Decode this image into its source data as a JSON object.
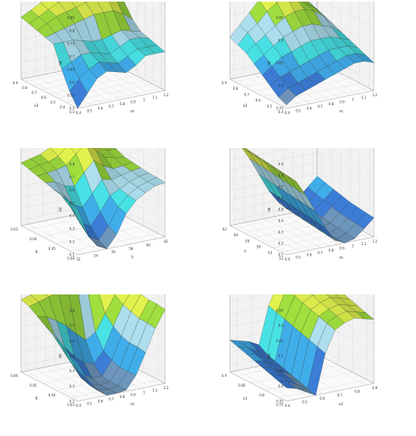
{
  "figure": {
    "colormap": [
      "#6a8fb5",
      "#3a78d0",
      "#3ea6e2",
      "#45d8dc",
      "#a6d6e6",
      "#9ad63c",
      "#d8e84a",
      "#f0f070"
    ],
    "mesh_color": "#223322",
    "pane_color": "#f2f2f2",
    "grid_color": "#c8c8c8"
  },
  "chart_data": [
    {
      "type": "surface",
      "xlabel": "rπ",
      "ylabel": "ε2",
      "zlabel": "π1",
      "xticks": [
        "0.4",
        "0.5",
        "0.6",
        "0.7",
        "0.8",
        "0.9",
        "1",
        "1.1",
        "1.2"
      ],
      "yticks": [
        "0.9",
        "0.8",
        "0.7",
        "0.6",
        "0.5",
        "0.4",
        "0.3"
      ],
      "zticks": [
        "0.5",
        "0.55",
        "0.6",
        "0.65",
        "0.7",
        "0.75",
        "0.8",
        "0.85"
      ],
      "zlim": [
        0.5,
        0.85
      ],
      "z": [
        [
          0.74,
          0.76,
          0.78,
          0.8,
          0.81,
          0.82,
          0.83,
          0.84,
          0.82,
          0.79
        ],
        [
          0.73,
          0.75,
          0.77,
          0.79,
          0.8,
          0.81,
          0.82,
          0.83,
          0.81,
          0.78
        ],
        [
          0.72,
          0.74,
          0.76,
          0.77,
          0.78,
          0.79,
          0.8,
          0.81,
          0.79,
          0.76
        ],
        [
          0.71,
          0.72,
          0.73,
          0.74,
          0.75,
          0.76,
          0.76,
          0.76,
          0.74,
          0.71
        ],
        [
          0.7,
          0.7,
          0.7,
          0.69,
          0.68,
          0.68,
          0.69,
          0.7,
          0.69,
          0.68
        ],
        [
          0.62,
          0.64,
          0.66,
          0.66,
          0.65,
          0.64,
          0.66,
          0.68,
          0.68,
          0.67
        ],
        [
          0.55,
          0.59,
          0.62,
          0.64,
          0.63,
          0.62,
          0.64,
          0.66,
          0.66,
          0.66
        ],
        [
          0.5,
          0.55,
          0.6,
          0.62,
          0.61,
          0.6,
          0.62,
          0.65,
          0.65,
          0.65
        ]
      ]
    },
    {
      "type": "surface",
      "xlabel": "rπ",
      "ylabel": "ε2",
      "zlabel": "π2",
      "xticks": [
        "0.4",
        "0.5",
        "0.6",
        "0.7",
        "0.8",
        "0.9",
        "1",
        "1.1",
        "1.2"
      ],
      "yticks": [
        "0.9",
        "0.8",
        "0.7",
        "0.6",
        "0.5",
        "0.4"
      ],
      "zticks": [
        "0.75",
        "0.8",
        "0.85",
        "0.9",
        "0.95"
      ],
      "zlim": [
        0.72,
        0.98
      ],
      "z": [
        [
          0.84,
          0.87,
          0.9,
          0.93,
          0.96,
          0.97,
          0.96,
          0.93,
          0.9,
          0.87
        ],
        [
          0.83,
          0.86,
          0.88,
          0.91,
          0.93,
          0.94,
          0.93,
          0.91,
          0.89,
          0.86
        ],
        [
          0.82,
          0.84,
          0.86,
          0.88,
          0.9,
          0.91,
          0.91,
          0.9,
          0.88,
          0.85
        ],
        [
          0.8,
          0.82,
          0.84,
          0.86,
          0.87,
          0.88,
          0.88,
          0.87,
          0.86,
          0.84
        ],
        [
          0.78,
          0.8,
          0.82,
          0.83,
          0.84,
          0.85,
          0.85,
          0.85,
          0.84,
          0.83
        ],
        [
          0.76,
          0.78,
          0.79,
          0.8,
          0.81,
          0.82,
          0.83,
          0.83,
          0.83,
          0.82
        ],
        [
          0.74,
          0.76,
          0.77,
          0.78,
          0.79,
          0.8,
          0.81,
          0.82,
          0.82,
          0.81
        ],
        [
          0.73,
          0.75,
          0.76,
          0.77,
          0.78,
          0.79,
          0.8,
          0.81,
          0.81,
          0.8
        ]
      ]
    },
    {
      "type": "surface",
      "xlabel": "T",
      "ylabel": "δ",
      "zlabel": "π3",
      "xticks": [
        "52",
        "54",
        "56",
        "58",
        "60",
        "62"
      ],
      "yticks": [
        "0.03",
        "0.04",
        "0.05",
        "0.06"
      ],
      "zticks": [
        "0.1",
        "0.2",
        "0.3",
        "0.4",
        "0.5",
        "0.6",
        "0.7",
        "0.8"
      ],
      "zlim": [
        0.1,
        0.85
      ],
      "z": [
        [
          0.62,
          0.64,
          0.66,
          0.7,
          0.78,
          0.82,
          0.78,
          0.7,
          0.66,
          0.64
        ],
        [
          0.6,
          0.62,
          0.63,
          0.66,
          0.74,
          0.8,
          0.74,
          0.66,
          0.63,
          0.62
        ],
        [
          0.58,
          0.59,
          0.6,
          0.62,
          0.7,
          0.76,
          0.7,
          0.62,
          0.6,
          0.59
        ],
        [
          0.56,
          0.55,
          0.5,
          0.48,
          0.58,
          0.66,
          0.6,
          0.56,
          0.57,
          0.58
        ],
        [
          0.54,
          0.48,
          0.38,
          0.34,
          0.44,
          0.54,
          0.52,
          0.54,
          0.56,
          0.57
        ],
        [
          0.52,
          0.4,
          0.26,
          0.22,
          0.32,
          0.44,
          0.48,
          0.52,
          0.55,
          0.56
        ],
        [
          0.5,
          0.32,
          0.18,
          0.14,
          0.24,
          0.38,
          0.46,
          0.51,
          0.54,
          0.56
        ],
        [
          0.48,
          0.26,
          0.14,
          0.1,
          0.2,
          0.36,
          0.45,
          0.5,
          0.54,
          0.55
        ]
      ]
    },
    {
      "type": "surface",
      "xlabel": "rπ",
      "ylabel": "T",
      "zlabel": "π4",
      "xticks": [
        "0.4",
        "0.5",
        "0.6",
        "0.7",
        "0.8",
        "0.9",
        "1",
        "1.1",
        "1.2"
      ],
      "yticks": [
        "62",
        "60",
        "58",
        "56",
        "54",
        "52"
      ],
      "zticks": [
        "0.1",
        "0.2",
        "0.3",
        "0.4",
        "0.5",
        "0.6",
        "0.7",
        "0.8",
        "0.9"
      ],
      "zlim": [
        0.1,
        0.9
      ],
      "z": [
        [
          0.86,
          0.8,
          0.66,
          0.5,
          0.34,
          0.22,
          0.18,
          0.22,
          0.3,
          0.38
        ],
        [
          0.85,
          0.79,
          0.65,
          0.49,
          0.33,
          0.2,
          0.16,
          0.2,
          0.28,
          0.36
        ],
        [
          0.84,
          0.78,
          0.64,
          0.48,
          0.32,
          0.19,
          0.14,
          0.18,
          0.26,
          0.34
        ],
        [
          0.83,
          0.77,
          0.63,
          0.47,
          0.31,
          0.18,
          0.13,
          0.16,
          0.24,
          0.32
        ],
        [
          0.82,
          0.76,
          0.62,
          0.46,
          0.3,
          0.17,
          0.12,
          0.15,
          0.22,
          0.3
        ],
        [
          0.81,
          0.75,
          0.61,
          0.45,
          0.29,
          0.16,
          0.11,
          0.14,
          0.21,
          0.29
        ],
        [
          0.8,
          0.74,
          0.6,
          0.44,
          0.28,
          0.15,
          0.1,
          0.13,
          0.2,
          0.28
        ],
        [
          0.79,
          0.73,
          0.59,
          0.43,
          0.27,
          0.14,
          0.1,
          0.12,
          0.19,
          0.27
        ]
      ]
    },
    {
      "type": "surface",
      "xlabel": "rπ",
      "ylabel": "δ",
      "zlabel": "π5",
      "xticks": [
        "0.4",
        "0.5",
        "0.6",
        "0.7",
        "0.8",
        "0.9",
        "1",
        "1.1",
        "1.2"
      ],
      "yticks": [
        "0.06",
        "0.05",
        "0.04",
        "0.03"
      ],
      "zticks": [
        "0.2",
        "0.3",
        "0.4",
        "0.5",
        "0.6",
        "0.7",
        "0.8"
      ],
      "zlim": [
        0.2,
        0.85
      ],
      "z": [
        [
          0.72,
          0.74,
          0.76,
          0.78,
          0.8,
          0.8,
          0.79,
          0.78,
          0.79,
          0.81
        ],
        [
          0.7,
          0.72,
          0.74,
          0.76,
          0.77,
          0.76,
          0.74,
          0.74,
          0.76,
          0.79
        ],
        [
          0.66,
          0.64,
          0.6,
          0.55,
          0.48,
          0.42,
          0.46,
          0.58,
          0.7,
          0.78
        ],
        [
          0.62,
          0.54,
          0.44,
          0.36,
          0.3,
          0.28,
          0.36,
          0.52,
          0.66,
          0.76
        ],
        [
          0.58,
          0.46,
          0.34,
          0.26,
          0.22,
          0.22,
          0.32,
          0.48,
          0.64,
          0.75
        ],
        [
          0.54,
          0.4,
          0.28,
          0.22,
          0.2,
          0.21,
          0.3,
          0.46,
          0.62,
          0.74
        ],
        [
          0.5,
          0.36,
          0.26,
          0.21,
          0.2,
          0.21,
          0.3,
          0.46,
          0.62,
          0.74
        ],
        [
          0.48,
          0.34,
          0.25,
          0.2,
          0.2,
          0.21,
          0.3,
          0.45,
          0.61,
          0.73
        ]
      ]
    },
    {
      "type": "surface",
      "xlabel": "ε2",
      "ylabel": "ε1",
      "zlabel": "π6",
      "xticks": [
        "0.4",
        "0.5",
        "0.6",
        "0.7",
        "0.8",
        "0.9"
      ],
      "yticks": [
        "0.9",
        "0.85",
        "0.8",
        "0.75"
      ],
      "zticks": [
        "0.35",
        "0.4",
        "0.45",
        "0.5",
        "0.55",
        "0.6",
        "0.65"
      ],
      "zlim": [
        0.34,
        0.68
      ],
      "z": [
        [
          0.46,
          0.45,
          0.44,
          0.42,
          0.56,
          0.64,
          0.66,
          0.67,
          0.66,
          0.65
        ],
        [
          0.45,
          0.44,
          0.42,
          0.4,
          0.55,
          0.63,
          0.65,
          0.66,
          0.65,
          0.64
        ],
        [
          0.44,
          0.43,
          0.41,
          0.39,
          0.54,
          0.62,
          0.64,
          0.65,
          0.64,
          0.63
        ],
        [
          0.43,
          0.42,
          0.4,
          0.38,
          0.53,
          0.61,
          0.63,
          0.64,
          0.63,
          0.62
        ],
        [
          0.42,
          0.41,
          0.39,
          0.37,
          0.52,
          0.6,
          0.62,
          0.63,
          0.62,
          0.61
        ],
        [
          0.41,
          0.4,
          0.38,
          0.36,
          0.51,
          0.59,
          0.61,
          0.62,
          0.61,
          0.6
        ],
        [
          0.4,
          0.39,
          0.37,
          0.35,
          0.5,
          0.58,
          0.6,
          0.61,
          0.6,
          0.59
        ],
        [
          0.39,
          0.38,
          0.36,
          0.34,
          0.49,
          0.57,
          0.59,
          0.6,
          0.59,
          0.58
        ]
      ]
    }
  ]
}
